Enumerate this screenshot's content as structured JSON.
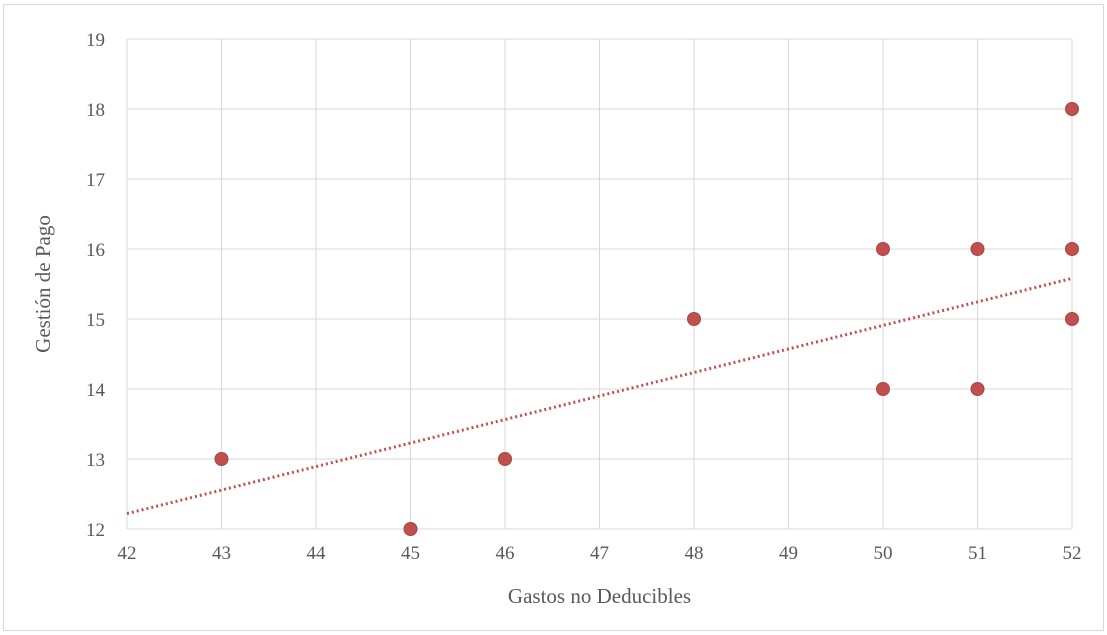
{
  "chart_data": {
    "type": "scatter",
    "xlabel": "Gastos no Deducibles",
    "ylabel": "Gestión de Pago",
    "xlim": [
      42,
      52
    ],
    "ylim": [
      12,
      19
    ],
    "x_ticks": [
      "42",
      "43",
      "44",
      "45",
      "46",
      "47",
      "48",
      "49",
      "50",
      "51",
      "52"
    ],
    "y_ticks": [
      "12",
      "13",
      "14",
      "15",
      "16",
      "17",
      "18",
      "19"
    ],
    "grid": true,
    "legend": "none",
    "series": [
      {
        "points": [
          {
            "x": 43,
            "y": 13
          },
          {
            "x": 45,
            "y": 12
          },
          {
            "x": 46,
            "y": 13
          },
          {
            "x": 48,
            "y": 15
          },
          {
            "x": 50,
            "y": 16
          },
          {
            "x": 50,
            "y": 14
          },
          {
            "x": 51,
            "y": 16
          },
          {
            "x": 51,
            "y": 14
          },
          {
            "x": 52,
            "y": 18
          },
          {
            "x": 52,
            "y": 16
          },
          {
            "x": 52,
            "y": 15
          }
        ],
        "color": "#c0504d"
      }
    ],
    "trendline": {
      "type": "linear",
      "style": "dotted",
      "color": "#c0504d",
      "from": {
        "x": 42,
        "y": 12.22
      },
      "to": {
        "x": 52,
        "y": 15.58
      }
    }
  }
}
